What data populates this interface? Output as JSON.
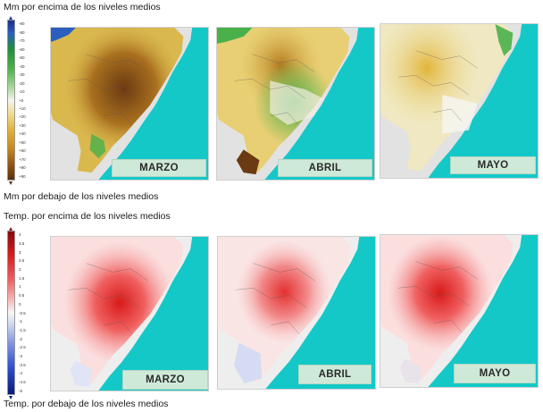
{
  "precipitation": {
    "caption_above": "Mm por encima de los niveles medios",
    "caption_below": "Mm por debajo de los niveles medios",
    "legend_ticks": [
      "-90",
      "-80",
      "-70",
      "-60",
      "-50",
      "-40",
      "-30",
      "-20",
      "-10",
      "+5",
      "+10",
      "+20",
      "+30",
      "+40",
      "+50",
      "+60",
      "+70",
      "+80",
      "+90"
    ],
    "maps": [
      {
        "month": "MARZO"
      },
      {
        "month": "ABRIL"
      },
      {
        "month": "MAYO"
      }
    ]
  },
  "temperature": {
    "caption_above": "Temp. por encima de los niveles medios",
    "caption_below": "Temp. por debajo de los niveles medios",
    "legend_ticks": [
      "4",
      "3.5",
      "3",
      "2.5",
      "2",
      "1.5",
      "1",
      "0.5",
      "0",
      "-0.5",
      "-1",
      "-1.5",
      "-2",
      "-2.5",
      "-3",
      "-3.5",
      "-4",
      "-4.5",
      "-5"
    ],
    "maps": [
      {
        "month": "MARZO"
      },
      {
        "month": "ABRIL"
      },
      {
        "month": "MAYO"
      }
    ]
  },
  "colors": {
    "ocean": "#14c8c8",
    "land_outside": "#e2e2e2",
    "wet": "#1f8f3a",
    "dry": "#6b3a12",
    "warm": "#e11818",
    "cool": "#1a3fb0",
    "label_bg": "#cfe9d8"
  }
}
